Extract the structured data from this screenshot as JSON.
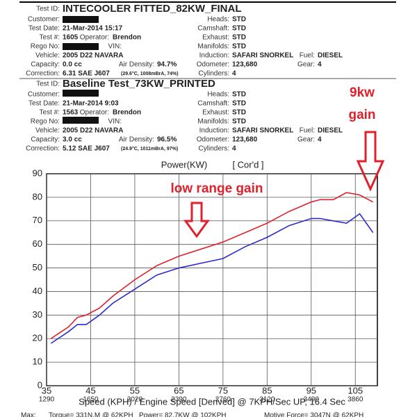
{
  "labels": {
    "test_id": "Test ID:",
    "customer": "Customer:",
    "test_date": "Test Date:",
    "test_no": "Test #:",
    "operator": "Operator:",
    "rego": "Rego No:",
    "vin": "VIN:",
    "vehicle": "Vehicle:",
    "capacity": "Capacity:",
    "air_density": "Air Density:",
    "correction": "Correction:",
    "heads": "Heads:",
    "camshaft": "Camshaft:",
    "exhaust": "Exhaust:",
    "manifolds": "Manifolds:",
    "induction": "Induction:",
    "fuel": "Fuel:",
    "odometer": "Odometer:",
    "gear": "Gear:",
    "cylinders": "Cylinders:"
  },
  "runs": [
    {
      "test_id": "INTECOOLER FITTED_82KW_FINAL",
      "test_date": "21-Mar-2014 15:17",
      "test_no": "1605",
      "operator": "Brendon",
      "vehicle": "2005 D22 NAVARA",
      "capacity": "0.0 cc",
      "air_density": "94.7%",
      "correction": "6.31 SAE J607",
      "correction_detail": "(29.6°C, 1008mBrA, 74%)",
      "heads": "STD",
      "camshaft": "STD",
      "exhaust": "STD",
      "manifolds": "STD",
      "induction": "SAFARI SNORKEL",
      "fuel": "DIESEL",
      "odometer": "123,680",
      "gear": "4",
      "cylinders": "4"
    },
    {
      "test_id": "Baseline Test_73KW_PRINTED",
      "test_date": "21-Mar-2014 9:03",
      "test_no": "1563",
      "operator": "Brendon",
      "vehicle": "2005 D22 NAVARA",
      "capacity": "3.0 cc",
      "air_density": "96.5%",
      "correction": "5.12 SAE J607",
      "correction_detail": "(24.9°C, 1011mBrA, 97%)",
      "heads": "STD",
      "camshaft": "STD",
      "exhaust": "STD",
      "manifolds": "STD",
      "induction": "SAFARI SNORKEL",
      "fuel": "DIESEL",
      "odometer": "123,680",
      "gear": "4",
      "cylinders": "4"
    }
  ],
  "chart_data": {
    "type": "line",
    "title": "Power(KW)",
    "subtitle": "[ Cor'd ]",
    "x_label": "Speed (KPH) / Engine Speed [Derived] @ 7KPH/Sec UP, 16.4 Sec",
    "x": [
      36,
      40,
      42,
      44,
      47,
      50,
      55,
      60,
      65,
      70,
      75,
      80,
      85,
      90,
      95,
      97,
      100,
      103,
      106,
      109
    ],
    "series": [
      {
        "color": "#e0202a",
        "values": [
          20,
          25,
          29,
          30,
          33,
          38,
          45,
          51,
          55,
          58,
          61,
          65,
          69,
          74,
          78,
          79,
          79,
          82,
          81,
          78
        ]
      },
      {
        "color": "#2a2ad0",
        "values": [
          18,
          23,
          26,
          26,
          30,
          35,
          41,
          47,
          50,
          52,
          54,
          59,
          63,
          68,
          71,
          71,
          70,
          69,
          73,
          65
        ]
      }
    ],
    "xlim": [
      35,
      110
    ],
    "xticks": [
      35,
      45,
      55,
      65,
      75,
      85,
      95,
      105
    ],
    "x2_labels": [
      "1290",
      "1650",
      "2020",
      "2390",
      "2760",
      "3120",
      "3490",
      "3860"
    ],
    "ylim": [
      0,
      90
    ],
    "yticks": [
      0,
      10,
      20,
      30,
      40,
      50,
      60,
      70,
      80,
      90
    ],
    "grid": true,
    "annotations": [
      "low range gain",
      "9kw",
      "gain"
    ]
  },
  "footer": [
    "Max:",
    "Torque= 331N.M @ 62KPH",
    "Power= 82.7KW @ 102KPH",
    "Motive Force= 3047N @ 62KPH"
  ]
}
